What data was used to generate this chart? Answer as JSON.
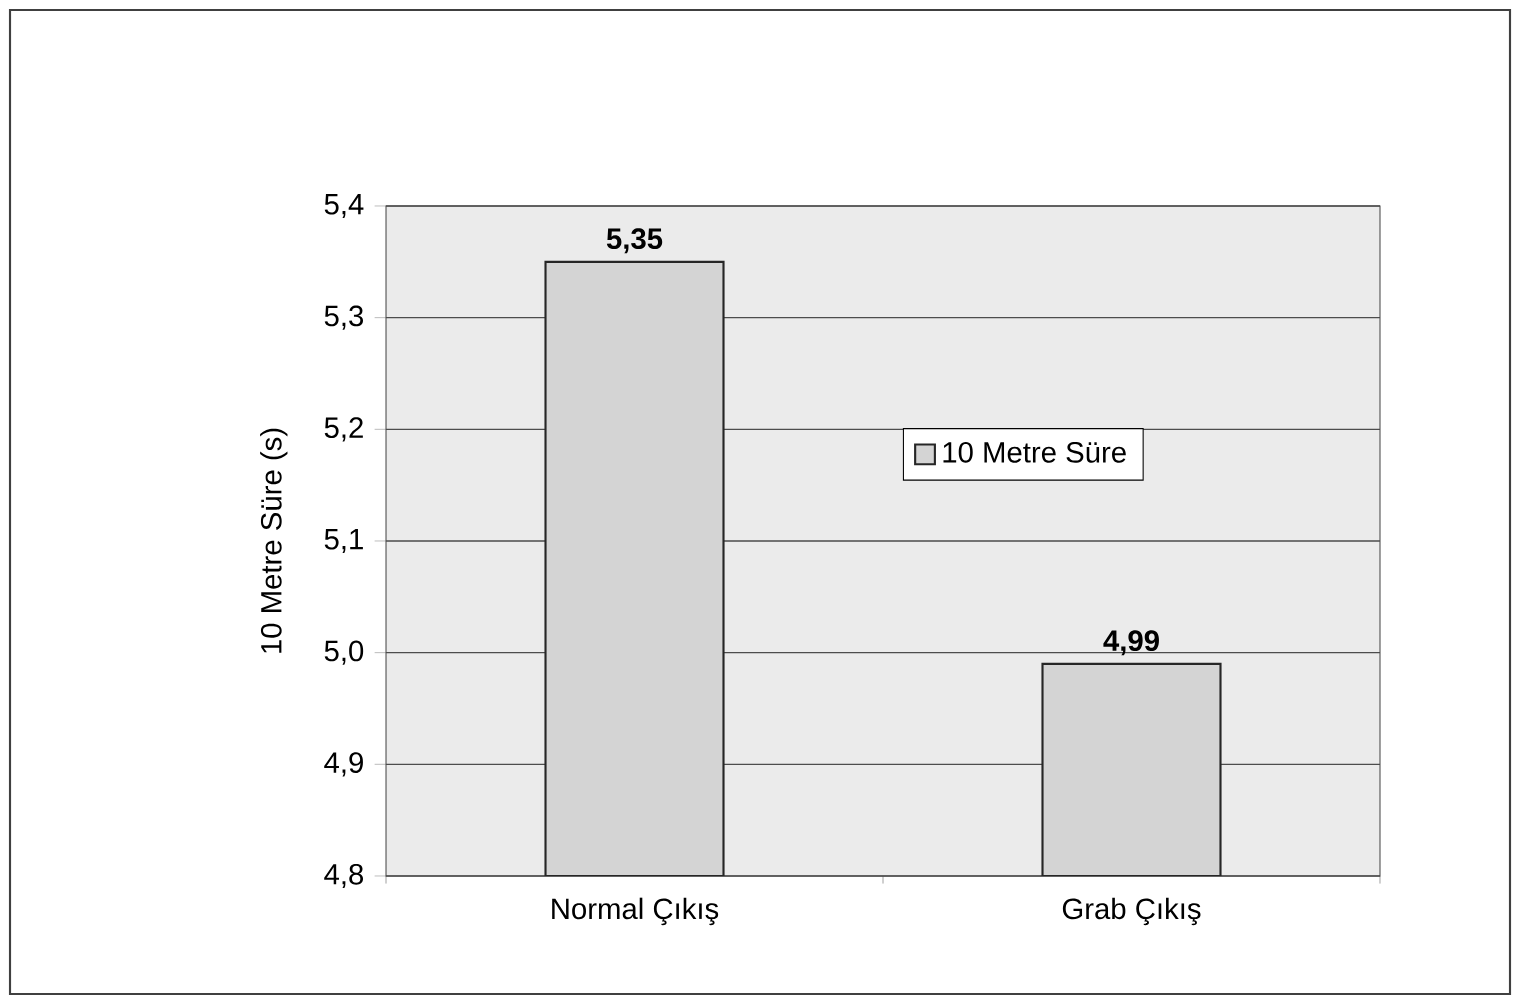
{
  "chart_data": {
    "type": "bar",
    "ylabel": "10 Metre Süre (s)",
    "categories": [
      "Normal Çıkış",
      "Grab Çıkış"
    ],
    "series": [
      {
        "name": "10 Metre Süre",
        "color": "#d4d4d4",
        "values": [
          5.35,
          4.99
        ],
        "value_labels": [
          "5,35",
          "4,99"
        ]
      }
    ],
    "ylim": [
      4.8,
      5.4
    ],
    "yticks": [
      {
        "value": 4.8,
        "label": "4,8"
      },
      {
        "value": 4.9,
        "label": "4,9"
      },
      {
        "value": 5.0,
        "label": "5,0"
      },
      {
        "value": 5.1,
        "label": "5,1"
      },
      {
        "value": 5.2,
        "label": "5,2"
      },
      {
        "value": 5.3,
        "label": "5,3"
      },
      {
        "value": 5.4,
        "label": "5,4"
      }
    ],
    "grid": "y",
    "legend": "right"
  }
}
